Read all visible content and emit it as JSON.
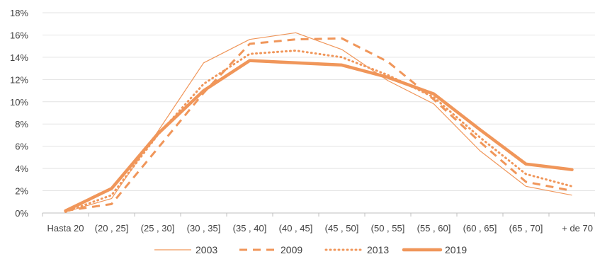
{
  "chart_data": {
    "type": "line",
    "title": "",
    "xlabel": "",
    "ylabel": "",
    "categories": [
      "Hasta 20",
      "(20 , 25]",
      "(25 , 30]",
      "(30 , 35]",
      "(35 , 40]",
      "(40 , 45]",
      "(45 , 50]",
      "(50 , 55]",
      "(55 , 60]",
      "(60 , 65]",
      "(65 , 70]",
      "+ de 70"
    ],
    "ylim": [
      0,
      18
    ],
    "yticks": [
      "0%",
      "2%",
      "4%",
      "6%",
      "8%",
      "10%",
      "12%",
      "14%",
      "16%",
      "18%"
    ],
    "grid": true,
    "legend_position": "bottom",
    "color": "#F0965A",
    "series": [
      {
        "name": "2003",
        "style": "thin-solid",
        "values": [
          0.1,
          1.3,
          7.3,
          13.5,
          15.6,
          16.2,
          14.7,
          11.9,
          9.8,
          5.6,
          2.4,
          1.6
        ]
      },
      {
        "name": "2009",
        "style": "dashed",
        "values": [
          0.2,
          0.8,
          5.8,
          10.8,
          15.2,
          15.6,
          15.7,
          13.6,
          10.2,
          6.4,
          2.8,
          2.0
        ]
      },
      {
        "name": "2013",
        "style": "dotted",
        "values": [
          0.1,
          1.6,
          7.0,
          11.6,
          14.3,
          14.6,
          14.0,
          12.4,
          10.4,
          6.8,
          3.5,
          2.4
        ]
      },
      {
        "name": "2019",
        "style": "thick-solid",
        "values": [
          0.2,
          2.2,
          7.1,
          11.0,
          13.7,
          13.5,
          13.3,
          12.2,
          10.7,
          7.5,
          4.4,
          3.9
        ]
      }
    ]
  }
}
